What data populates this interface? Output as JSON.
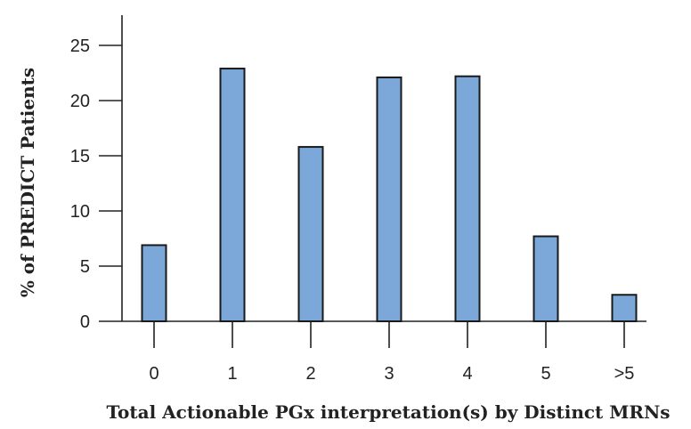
{
  "chart_data": {
    "type": "bar",
    "title": "",
    "xlabel": "Total Actionable PGx interpretation(s) by Distinct MRNs",
    "ylabel": "% of PREDICT Patients",
    "categories": [
      "0",
      "1",
      "2",
      "3",
      "4",
      "5",
      ">5"
    ],
    "values": [
      6.9,
      22.9,
      15.8,
      22.1,
      22.2,
      7.7,
      2.4
    ],
    "ylim": [
      0,
      25
    ],
    "yticks": [
      "0",
      "5",
      "10",
      "15",
      "20",
      "25"
    ],
    "grid": false,
    "bar_color": "#7ba7d9",
    "bar_edge_color": "#1a1a1a"
  }
}
